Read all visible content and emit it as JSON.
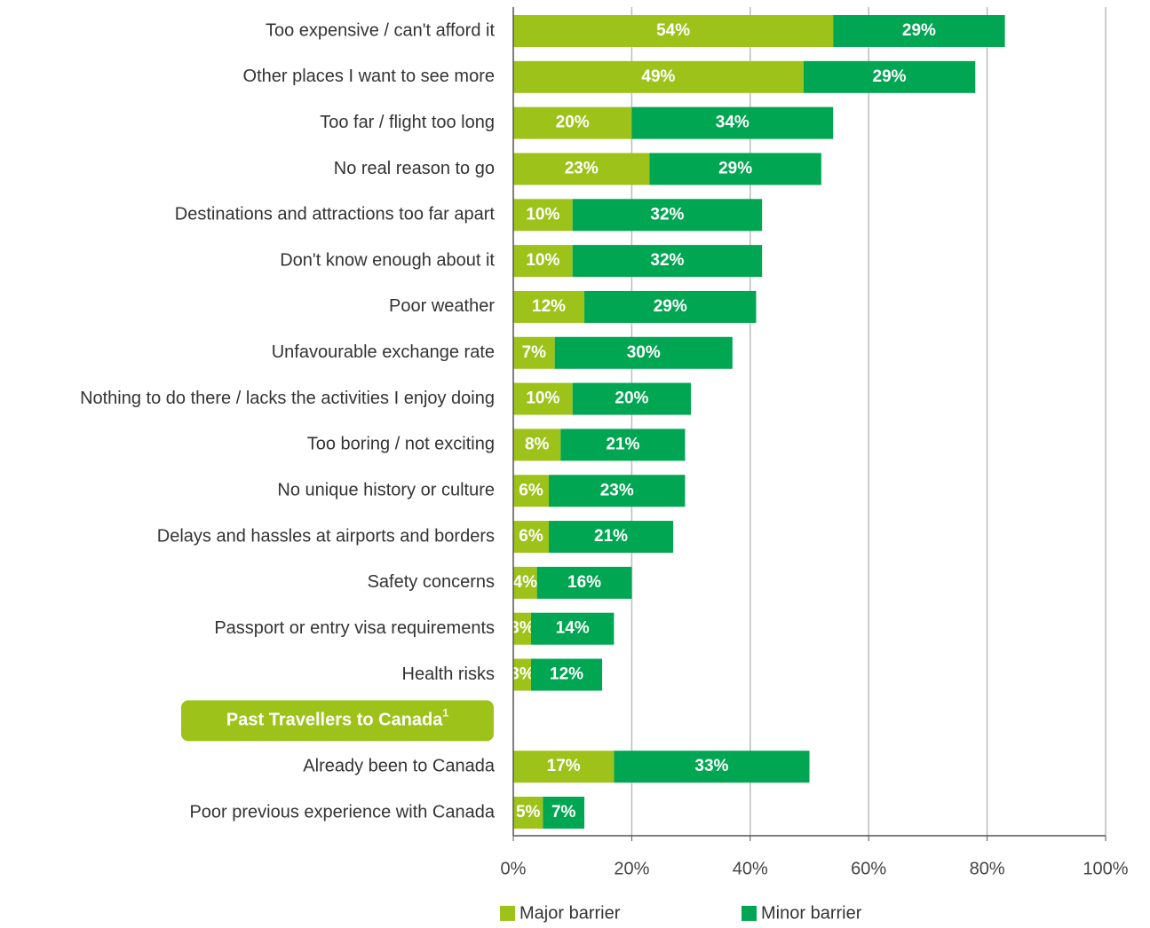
{
  "chart_data": {
    "type": "stacked-barh",
    "categories": [
      "Too expensive / can't afford it",
      "Other places I want to see more",
      "Too far / flight too long",
      "No real reason to go",
      "Destinations and attractions too far apart",
      "Don't know enough about it",
      "Poor weather",
      "Unfavourable exchange rate",
      "Nothing to do there / lacks the activities I enjoy doing",
      "Too boring / not exciting",
      "No unique history or culture",
      "Delays and hassles at airports and borders",
      "Safety concerns",
      "Passport or entry visa requirements",
      "Health risks",
      null,
      "Already been to Canada",
      "Poor previous experience with Canada"
    ],
    "series": [
      {
        "name": "Major barrier",
        "color": "#9dc31a",
        "values": [
          54,
          49,
          20,
          23,
          10,
          10,
          12,
          7,
          10,
          8,
          6,
          6,
          4,
          3,
          3,
          null,
          17,
          5
        ],
        "value_labels": [
          "54%",
          "49%",
          "20%",
          "23%",
          "10%",
          "10%",
          "12%",
          "7%",
          "10%",
          "8%",
          "6%",
          "6%",
          "4%",
          "3%",
          "3%",
          null,
          "17%",
          "5%"
        ]
      },
      {
        "name": "Minor barrier",
        "color": "#00a651",
        "values": [
          29,
          29,
          34,
          29,
          32,
          32,
          29,
          30,
          20,
          21,
          23,
          21,
          16,
          14,
          12,
          null,
          33,
          7
        ],
        "value_labels": [
          "29%",
          "29%",
          "34%",
          "29%",
          "32%",
          "32%",
          "29%",
          "30%",
          "20%",
          "21%",
          "23%",
          "21%",
          "16%",
          "14%",
          "12%",
          null,
          "33%",
          "7%"
        ]
      }
    ],
    "section_label": {
      "text": "Past Travellers to Canada",
      "note": "1",
      "color": "#9dc31a"
    },
    "xlim": [
      0,
      100
    ],
    "xticks": [
      {
        "value": 0,
        "label": "0%"
      },
      {
        "value": 20,
        "label": "20%"
      },
      {
        "value": 40,
        "label": "40%"
      },
      {
        "value": 60,
        "label": "60%"
      },
      {
        "value": 80,
        "label": "80%"
      },
      {
        "value": 100,
        "label": "100%"
      }
    ],
    "grid": true,
    "legend": "bottom"
  }
}
